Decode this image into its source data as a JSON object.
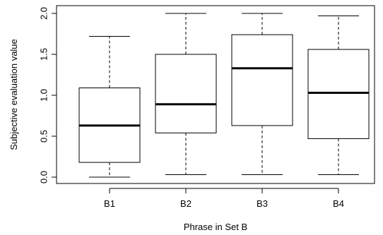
{
  "chart_data": {
    "type": "box",
    "title": "",
    "xlabel": "Phrase in Set B",
    "ylabel": "Subjective evaluation value",
    "ylim": [
      -0.1,
      2.05
    ],
    "yticks": [
      "0.0",
      "0.5",
      "1.0",
      "1.5",
      "2.0"
    ],
    "ytick_values": [
      0.0,
      0.5,
      1.0,
      1.5,
      2.0
    ],
    "categories": [
      "B1",
      "B2",
      "B3",
      "B4"
    ],
    "boxes": [
      {
        "label": "B1",
        "min": 0.0,
        "q1": 0.18,
        "median": 0.63,
        "q3": 1.09,
        "max": 1.72
      },
      {
        "label": "B2",
        "min": 0.03,
        "q1": 0.54,
        "median": 0.89,
        "q3": 1.5,
        "max": 2.0
      },
      {
        "label": "B3",
        "min": 0.03,
        "q1": 0.63,
        "median": 1.33,
        "q3": 1.74,
        "max": 2.0
      },
      {
        "label": "B4",
        "min": 0.03,
        "q1": 0.47,
        "median": 1.03,
        "q3": 1.56,
        "max": 1.97
      }
    ]
  }
}
